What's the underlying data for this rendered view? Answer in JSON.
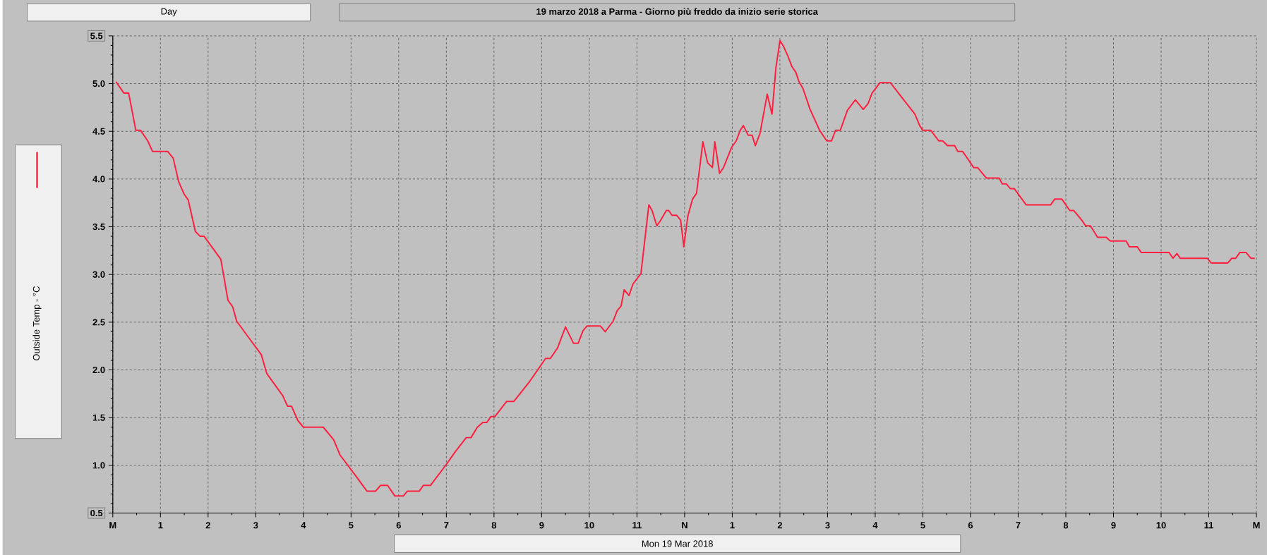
{
  "chart_data": {
    "type": "line",
    "title": "19 marzo 2018 a Parma - Giorno più freddo da inizio serie storica",
    "xlabel": "Mon 19 Mar 2018",
    "annotations": [
      "Day"
    ],
    "x": [
      "2018-03-19T00:04",
      "2018-03-19T00:14",
      "2018-03-19T00:20",
      "2018-03-19T00:29",
      "2018-03-19T00:35",
      "2018-03-19T00:44",
      "2018-03-19T00:50",
      "2018-03-19T01:09",
      "2018-03-19T01:16",
      "2018-03-19T01:23",
      "2018-03-19T01:30",
      "2018-03-19T01:35",
      "2018-03-19T01:44",
      "2018-03-19T01:50",
      "2018-03-19T01:55",
      "2018-03-19T02:16",
      "2018-03-19T02:25",
      "2018-03-19T02:31",
      "2018-03-19T02:36",
      "2018-03-19T02:51",
      "2018-03-19T03:07",
      "2018-03-19T03:14",
      "2018-03-19T03:34",
      "2018-03-19T03:40",
      "2018-03-19T03:45",
      "2018-03-19T03:53",
      "2018-03-19T04:00",
      "2018-03-19T04:25",
      "2018-03-19T04:38",
      "2018-03-19T04:46",
      "2018-03-19T05:05",
      "2018-03-19T05:20",
      "2018-03-19T05:31",
      "2018-03-19T05:37",
      "2018-03-19T05:46",
      "2018-03-19T05:55",
      "2018-03-19T06:06",
      "2018-03-19T06:11",
      "2018-03-19T06:26",
      "2018-03-19T06:31",
      "2018-03-19T06:40",
      "2018-03-19T07:00",
      "2018-03-19T07:11",
      "2018-03-19T07:25",
      "2018-03-19T07:31",
      "2018-03-19T07:39",
      "2018-03-19T07:46",
      "2018-03-19T07:51",
      "2018-03-19T07:56",
      "2018-03-19T08:01",
      "2018-03-19T08:16",
      "2018-03-19T08:25",
      "2018-03-19T08:45",
      "2018-03-19T09:05",
      "2018-03-19T09:11",
      "2018-03-19T09:20",
      "2018-03-19T09:30",
      "2018-03-19T09:40",
      "2018-03-19T09:46",
      "2018-03-19T09:52",
      "2018-03-19T09:57",
      "2018-03-19T10:14",
      "2018-03-19T10:20",
      "2018-03-19T10:30",
      "2018-03-19T10:35",
      "2018-03-19T10:40",
      "2018-03-19T10:44",
      "2018-03-19T10:50",
      "2018-03-19T10:55",
      "2018-03-19T11:05",
      "2018-03-19T11:15",
      "2018-03-19T11:19",
      "2018-03-19T11:25",
      "2018-03-19T11:30",
      "2018-03-19T11:37",
      "2018-03-19T11:40",
      "2018-03-19T11:44",
      "2018-03-19T11:50",
      "2018-03-19T11:55",
      "2018-03-19T11:59",
      "2018-03-19T12:04",
      "2018-03-19T12:10",
      "2018-03-19T12:15",
      "2018-03-19T12:23",
      "2018-03-19T12:29",
      "2018-03-19T12:35",
      "2018-03-19T12:38",
      "2018-03-19T12:44",
      "2018-03-19T12:49",
      "2018-03-19T12:59",
      "2018-03-19T13:05",
      "2018-03-19T13:10",
      "2018-03-19T13:14",
      "2018-03-19T13:20",
      "2018-03-19T13:25",
      "2018-03-19T13:29",
      "2018-03-19T13:35",
      "2018-03-19T13:44",
      "2018-03-19T13:50",
      "2018-03-19T13:55",
      "2018-03-19T14:00",
      "2018-03-19T14:04",
      "2018-03-19T14:10",
      "2018-03-19T14:15",
      "2018-03-19T14:20",
      "2018-03-19T14:24",
      "2018-03-19T14:29",
      "2018-03-19T14:38",
      "2018-03-19T14:50",
      "2018-03-19T14:59",
      "2018-03-19T15:05",
      "2018-03-19T15:10",
      "2018-03-19T15:16",
      "2018-03-19T15:25",
      "2018-03-19T15:35",
      "2018-03-19T15:45",
      "2018-03-19T15:51",
      "2018-03-19T15:56",
      "2018-03-19T16:06",
      "2018-03-19T16:19",
      "2018-03-19T16:50",
      "2018-03-19T16:56",
      "2018-03-19T17:00",
      "2018-03-19T17:10",
      "2018-03-19T17:20",
      "2018-03-19T17:25",
      "2018-03-19T17:31",
      "2018-03-19T17:40",
      "2018-03-19T17:44",
      "2018-03-19T17:50",
      "2018-03-19T17:55",
      "2018-03-19T18:04",
      "2018-03-19T18:09",
      "2018-03-19T18:20",
      "2018-03-19T18:36",
      "2018-03-19T18:40",
      "2018-03-19T18:45",
      "2018-03-19T18:50",
      "2018-03-19T18:55",
      "2018-03-19T19:10",
      "2018-03-19T19:41",
      "2018-03-19T19:46",
      "2018-03-19T19:55",
      "2018-03-19T20:05",
      "2018-03-19T20:10",
      "2018-03-19T20:20",
      "2018-03-19T20:25",
      "2018-03-19T20:31",
      "2018-03-19T20:40",
      "2018-03-19T20:51",
      "2018-03-19T20:56",
      "2018-03-19T21:16",
      "2018-03-19T21:20",
      "2018-03-19T21:30",
      "2018-03-19T21:35",
      "2018-03-19T22:10",
      "2018-03-19T22:15",
      "2018-03-19T22:20",
      "2018-03-19T22:24",
      "2018-03-19T22:58",
      "2018-03-19T23:03",
      "2018-03-19T23:24",
      "2018-03-19T23:29",
      "2018-03-19T23:34",
      "2018-03-19T23:39",
      "2018-03-19T23:47",
      "2018-03-19T23:53",
      "2018-03-19T23:58"
    ],
    "series": [
      {
        "name": "Outside Temp - °C",
        "color": "#ff2040",
        "values": [
          5.02,
          4.9,
          4.9,
          4.51,
          4.51,
          4.4,
          4.29,
          4.29,
          4.22,
          3.97,
          3.84,
          3.78,
          3.45,
          3.4,
          3.4,
          3.16,
          2.73,
          2.66,
          2.51,
          2.34,
          2.16,
          1.96,
          1.73,
          1.62,
          1.62,
          1.47,
          1.4,
          1.4,
          1.27,
          1.11,
          0.9,
          0.73,
          0.73,
          0.79,
          0.79,
          0.68,
          0.68,
          0.73,
          0.73,
          0.79,
          0.79,
          1.01,
          1.14,
          1.29,
          1.29,
          1.4,
          1.45,
          1.45,
          1.51,
          1.51,
          1.67,
          1.67,
          1.88,
          2.12,
          2.12,
          2.23,
          2.45,
          2.28,
          2.28,
          2.41,
          2.46,
          2.46,
          2.4,
          2.51,
          2.62,
          2.67,
          2.84,
          2.78,
          2.9,
          3.01,
          3.73,
          3.67,
          3.51,
          3.57,
          3.67,
          3.67,
          3.62,
          3.62,
          3.57,
          3.29,
          3.61,
          3.79,
          3.85,
          4.39,
          4.17,
          4.12,
          4.39,
          4.06,
          4.12,
          4.33,
          4.4,
          4.51,
          4.56,
          4.46,
          4.46,
          4.35,
          4.48,
          4.89,
          4.68,
          5.17,
          5.45,
          5.4,
          5.29,
          5.18,
          5.12,
          5.02,
          4.95,
          4.73,
          4.51,
          4.4,
          4.4,
          4.51,
          4.51,
          4.72,
          4.83,
          4.73,
          4.79,
          4.9,
          5.01,
          5.01,
          4.68,
          4.56,
          4.51,
          4.51,
          4.4,
          4.4,
          4.35,
          4.35,
          4.29,
          4.29,
          4.23,
          4.12,
          4.12,
          4.01,
          4.01,
          3.95,
          3.95,
          3.9,
          3.9,
          3.73,
          3.73,
          3.79,
          3.79,
          3.67,
          3.67,
          3.57,
          3.51,
          3.51,
          3.39,
          3.39,
          3.35,
          3.35,
          3.29,
          3.29,
          3.23,
          3.23,
          3.17,
          3.22,
          3.17,
          3.17,
          3.12,
          3.12,
          3.17,
          3.17,
          3.23,
          3.23,
          3.17,
          3.17
        ]
      }
    ],
    "xlim": [
      "2018-03-19T00:00",
      "2018-03-20T00:00"
    ],
    "xticks": [
      {
        "value": "2018-03-19T00:00",
        "label": "M"
      },
      {
        "value": "2018-03-19T01:00",
        "label": "1"
      },
      {
        "value": "2018-03-19T02:00",
        "label": "2"
      },
      {
        "value": "2018-03-19T03:00",
        "label": "3"
      },
      {
        "value": "2018-03-19T04:00",
        "label": "4"
      },
      {
        "value": "2018-03-19T05:00",
        "label": "5"
      },
      {
        "value": "2018-03-19T06:00",
        "label": "6"
      },
      {
        "value": "2018-03-19T07:00",
        "label": "7"
      },
      {
        "value": "2018-03-19T08:00",
        "label": "8"
      },
      {
        "value": "2018-03-19T09:00",
        "label": "9"
      },
      {
        "value": "2018-03-19T10:00",
        "label": "10"
      },
      {
        "value": "2018-03-19T11:00",
        "label": "11"
      },
      {
        "value": "2018-03-19T12:00",
        "label": "N"
      },
      {
        "value": "2018-03-19T13:00",
        "label": "1"
      },
      {
        "value": "2018-03-19T14:00",
        "label": "2"
      },
      {
        "value": "2018-03-19T15:00",
        "label": "3"
      },
      {
        "value": "2018-03-19T16:00",
        "label": "4"
      },
      {
        "value": "2018-03-19T17:00",
        "label": "5"
      },
      {
        "value": "2018-03-19T18:00",
        "label": "6"
      },
      {
        "value": "2018-03-19T19:00",
        "label": "7"
      },
      {
        "value": "2018-03-19T20:00",
        "label": "8"
      },
      {
        "value": "2018-03-19T21:00",
        "label": "9"
      },
      {
        "value": "2018-03-19T22:00",
        "label": "10"
      },
      {
        "value": "2018-03-19T23:00",
        "label": "11"
      },
      {
        "value": "2018-03-20T00:00",
        "label": "M"
      }
    ],
    "ylim": [
      0.5,
      5.5
    ],
    "yticks": [
      0.5,
      {
        "value": 1,
        "label": "1.0"
      },
      1.5,
      {
        "value": 2,
        "label": "2.0"
      },
      2.5,
      {
        "value": 3,
        "label": "3.0"
      },
      3.5,
      {
        "value": 4,
        "label": "4.0"
      },
      4.5,
      {
        "value": 5,
        "label": "5.0"
      },
      5.5
    ],
    "grid": true,
    "legend": "left"
  }
}
